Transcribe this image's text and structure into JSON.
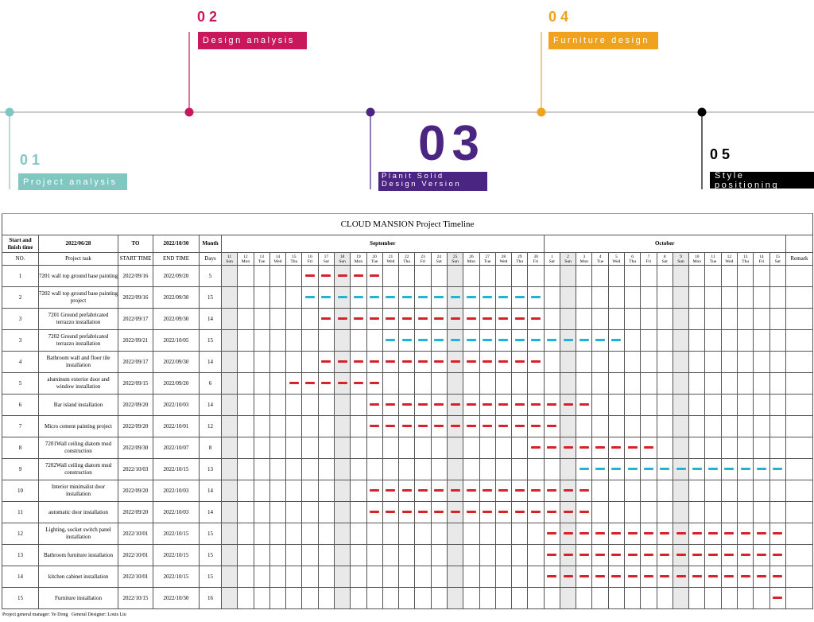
{
  "timeline": {
    "phases": [
      {
        "number": "01",
        "label": "Project analysis",
        "color": "#7ec8c1"
      },
      {
        "number": "02",
        "label": "Design analysis",
        "color": "#c8175d"
      },
      {
        "number": "03",
        "label": "Planit Solid Design Version",
        "color": "#4a2582"
      },
      {
        "number": "04",
        "label": "Furniture design",
        "color": "#f0a11e"
      },
      {
        "number": "05",
        "label": "Style positioning",
        "color": "#000000"
      }
    ]
  },
  "table": {
    "title": "CLOUD MANSION Project Timeline",
    "header": {
      "range_label": "Start and finish time",
      "range_start": "2022/06/28",
      "to": "TO",
      "range_end": "2022/10/30",
      "month_label": "Month",
      "no": "NO.",
      "task": "Project task",
      "start": "START TIME",
      "end": "END TIME",
      "days": "Days",
      "remark": "Remark"
    },
    "months": [
      {
        "name": "September",
        "days": [
          {
            "day": 11,
            "weekday": "Sun"
          },
          {
            "day": 12,
            "weekday": "Mon"
          },
          {
            "day": 13,
            "weekday": "Tue"
          },
          {
            "day": 14,
            "weekday": "Wed"
          },
          {
            "day": 15,
            "weekday": "Thu"
          },
          {
            "day": 16,
            "weekday": "Fri"
          },
          {
            "day": 17,
            "weekday": "Sat"
          },
          {
            "day": 18,
            "weekday": "Sun"
          },
          {
            "day": 19,
            "weekday": "Mon"
          },
          {
            "day": 20,
            "weekday": "Tue"
          },
          {
            "day": 21,
            "weekday": "Wed"
          },
          {
            "day": 22,
            "weekday": "Thu"
          },
          {
            "day": 23,
            "weekday": "Fri"
          },
          {
            "day": 24,
            "weekday": "Sat"
          },
          {
            "day": 25,
            "weekday": "Sun"
          },
          {
            "day": 26,
            "weekday": "Mon"
          },
          {
            "day": 27,
            "weekday": "Tue"
          },
          {
            "day": 28,
            "weekday": "Wed"
          },
          {
            "day": 29,
            "weekday": "Thu"
          },
          {
            "day": 30,
            "weekday": "Fri"
          }
        ]
      },
      {
        "name": "October",
        "days": [
          {
            "day": 1,
            "weekday": "Sat"
          },
          {
            "day": 2,
            "weekday": "Sun"
          },
          {
            "day": 3,
            "weekday": "Mon"
          },
          {
            "day": 4,
            "weekday": "Tue"
          },
          {
            "day": 5,
            "weekday": "Wed"
          },
          {
            "day": 6,
            "weekday": "Thu"
          },
          {
            "day": 7,
            "weekday": "Fri"
          },
          {
            "day": 8,
            "weekday": "Sat"
          },
          {
            "day": 9,
            "weekday": "Sun"
          },
          {
            "day": 10,
            "weekday": "Mon"
          },
          {
            "day": 11,
            "weekday": "Tue"
          },
          {
            "day": 12,
            "weekday": "Wed"
          },
          {
            "day": 13,
            "weekday": "Thu"
          },
          {
            "day": 14,
            "weekday": "Fri"
          },
          {
            "day": 15,
            "weekday": "Sat"
          }
        ]
      }
    ],
    "rows": [
      {
        "no": "1",
        "task": "7201 wall top ground base painting",
        "start": "2022/09/16",
        "end": "2022/09/20",
        "days": 5,
        "color": "#d7222a"
      },
      {
        "no": "2",
        "task": "7202 wall top ground base painting project",
        "start": "2022/09/16",
        "end": "2022/09/30",
        "days": 15,
        "color": "#1fb4d6"
      },
      {
        "no": "3",
        "task": "7201 Ground prefabricated terrazzo installation",
        "start": "2022/09/17",
        "end": "2022/09/30",
        "days": 14,
        "color": "#d7222a"
      },
      {
        "no": "3",
        "task": "7202 Ground prefabricated terrazzo installation",
        "start": "2022/09/21",
        "end": "2022/10/05",
        "days": 15,
        "color": "#1fb4d6"
      },
      {
        "no": "4",
        "task": "Bathroom wall and floor tile installation",
        "start": "2022/09/17",
        "end": "2022/09/30",
        "days": 14,
        "color": "#d7222a"
      },
      {
        "no": "5",
        "task": "aluminum exterior door and window installation",
        "start": "2022/09/15",
        "end": "2022/09/20",
        "days": 6,
        "color": "#d7222a"
      },
      {
        "no": "6",
        "task": "Bar island installation",
        "start": "2022/09/20",
        "end": "2022/10/03",
        "days": 14,
        "color": "#d7222a"
      },
      {
        "no": "7",
        "task": "Micro cement painting project",
        "start": "2022/09/20",
        "end": "2022/10/01",
        "days": 12,
        "color": "#d7222a"
      },
      {
        "no": "8",
        "task": "7201Wall ceiling diatom mud construction",
        "start": "2022/09/30",
        "end": "2022/10/07",
        "days": 8,
        "color": "#d7222a"
      },
      {
        "no": "9",
        "task": "7202Wall ceiling diatom mud construction",
        "start": "2022/10/03",
        "end": "2022/10/15",
        "days": 13,
        "color": "#1fb4d6"
      },
      {
        "no": "10",
        "task": "Interior minimalist door installation",
        "start": "2022/09/20",
        "end": "2022/10/03",
        "days": 14,
        "color": "#d7222a"
      },
      {
        "no": "11",
        "task": "automatic door installation",
        "start": "2022/09/20",
        "end": "2022/10/03",
        "days": 14,
        "color": "#d7222a"
      },
      {
        "no": "12",
        "task": "Lighting, socket switch panel installation",
        "start": "2022/10/01",
        "end": "2022/10/15",
        "days": 15,
        "color": "#d7222a"
      },
      {
        "no": "13",
        "task": "Bathroom furniture installation",
        "start": "2022/10/01",
        "end": "2022/10/15",
        "days": 15,
        "color": "#d7222a"
      },
      {
        "no": "14",
        "task": "kitchen cabinet installation",
        "start": "2022/10/01",
        "end": "2022/10/15",
        "days": 15,
        "color": "#d7222a"
      },
      {
        "no": "15",
        "task": "Furniture installation",
        "start": "2022/10/15",
        "end": "2022/10/30",
        "days": 16,
        "color": "#d7222a"
      }
    ]
  },
  "footer": "Project general manager: Ye Dong   General Designer: Louis Liu"
}
